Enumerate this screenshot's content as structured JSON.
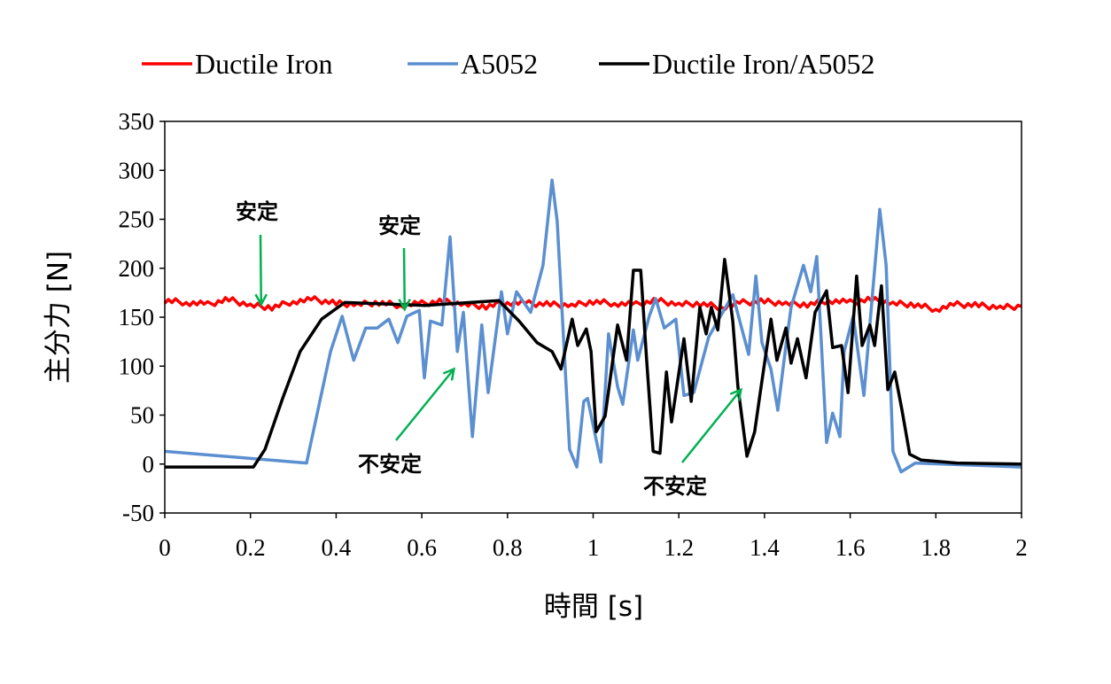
{
  "chart_data": {
    "type": "line",
    "xlabel": "時間 [s]",
    "ylabel": "主分力 [N]",
    "xlim": [
      0,
      2
    ],
    "ylim": [
      -50,
      350
    ],
    "xticks": [
      "0",
      "0.2",
      "0.4",
      "0.6",
      "0.8",
      "1",
      "1.2",
      "1.4",
      "1.6",
      "1.8",
      "2"
    ],
    "yticks": [
      "-50",
      "0",
      "50",
      "100",
      "150",
      "200",
      "250",
      "300",
      "350"
    ],
    "grid": false,
    "legend_position": "top",
    "series": [
      {
        "name": "Ductile Iron",
        "color": "#ff0000",
        "x": [
          0,
          0.05,
          0.1,
          0.15,
          0.2,
          0.25,
          0.3,
          0.35,
          0.4,
          0.45,
          0.5,
          0.55,
          0.6,
          0.65,
          0.7,
          0.75,
          0.8,
          0.85,
          0.9,
          0.95,
          1.0,
          1.05,
          1.1,
          1.15,
          1.2,
          1.25,
          1.3,
          1.35,
          1.4,
          1.45,
          1.5,
          1.55,
          1.6,
          1.65,
          1.7,
          1.75,
          1.8,
          1.85,
          1.9,
          1.95,
          2.0
        ],
        "y": [
          167,
          165,
          163,
          168,
          162,
          160,
          166,
          168,
          164,
          163,
          165,
          162,
          164,
          166,
          163,
          161,
          165,
          164,
          163,
          162,
          166,
          164,
          163,
          167,
          163,
          164,
          160,
          165,
          166,
          164,
          163,
          167,
          165,
          168,
          164,
          163,
          158,
          163,
          162,
          160,
          161
        ]
      },
      {
        "name": "A5052",
        "color": "#5b8fd0",
        "x": [
          0,
          0.331,
          0.387,
          0.414,
          0.441,
          0.469,
          0.496,
          0.523,
          0.544,
          0.565,
          0.594,
          0.606,
          0.62,
          0.647,
          0.666,
          0.683,
          0.697,
          0.718,
          0.74,
          0.755,
          0.786,
          0.8,
          0.821,
          0.854,
          0.883,
          0.904,
          0.916,
          0.945,
          0.962,
          0.978,
          0.987,
          1.018,
          1.036,
          1.057,
          1.069,
          1.094,
          1.104,
          1.131,
          1.146,
          1.166,
          1.193,
          1.212,
          1.235,
          1.27,
          1.326,
          1.363,
          1.38,
          1.394,
          1.415,
          1.431,
          1.45,
          1.462,
          1.491,
          1.508,
          1.522,
          1.545,
          1.559,
          1.576,
          1.586,
          1.607,
          1.632,
          1.646,
          1.669,
          1.684,
          1.7,
          1.719,
          1.752,
          2.0
        ],
        "y": [
          13,
          1,
          115,
          151,
          106,
          139,
          139,
          148,
          124,
          151,
          157,
          88,
          146,
          142,
          232,
          115,
          155,
          28,
          142,
          73,
          176,
          133,
          176,
          155,
          203,
          290,
          248,
          15,
          -3,
          64,
          67,
          2,
          133,
          79,
          61,
          137,
          106,
          151,
          169,
          139,
          148,
          70,
          73,
          130,
          173,
          112,
          192,
          124,
          97,
          55,
          121,
          160,
          203,
          176,
          212,
          22,
          52,
          28,
          115,
          151,
          70,
          142,
          260,
          203,
          13,
          -8,
          1,
          -3
        ]
      },
      {
        "name": "Ductile Iron/A5052",
        "color": "#000000",
        "x": [
          0,
          0.207,
          0.234,
          0.275,
          0.316,
          0.366,
          0.42,
          0.608,
          0.78,
          0.827,
          0.869,
          0.904,
          0.925,
          0.951,
          0.964,
          0.984,
          0.995,
          1.007,
          1.028,
          1.057,
          1.078,
          1.094,
          1.111,
          1.125,
          1.14,
          1.156,
          1.171,
          1.183,
          1.212,
          1.229,
          1.249,
          1.264,
          1.276,
          1.291,
          1.307,
          1.326,
          1.338,
          1.359,
          1.377,
          1.39,
          1.415,
          1.429,
          1.45,
          1.462,
          1.477,
          1.497,
          1.518,
          1.545,
          1.559,
          1.58,
          1.595,
          1.615,
          1.628,
          1.646,
          1.657,
          1.673,
          1.688,
          1.704,
          1.721,
          1.739,
          1.766,
          1.849,
          2.0
        ],
        "y": [
          -3,
          -3,
          15,
          67,
          115,
          148,
          165,
          162,
          167,
          146,
          124,
          115,
          97,
          148,
          121,
          138,
          115,
          33,
          49,
          142,
          106,
          198,
          198,
          106,
          13,
          11,
          94,
          43,
          128,
          64,
          160,
          133,
          160,
          137,
          209,
          146,
          79,
          8,
          33,
          73,
          148,
          106,
          139,
          103,
          128,
          88,
          155,
          177,
          119,
          121,
          73,
          192,
          121,
          142,
          121,
          182,
          76,
          94,
          55,
          10,
          4,
          1,
          0
        ]
      }
    ],
    "annotations": [
      {
        "text": "安定",
        "target": "Ductile Iron",
        "arrow_to": [
          0.225,
          163
        ],
        "color": "#00b050"
      },
      {
        "text": "安定",
        "target": "Ductile Iron/A5052",
        "arrow_to": [
          0.56,
          158
        ],
        "color": "#00b050"
      },
      {
        "text": "不安定",
        "target": "A5052",
        "arrow_to": [
          0.675,
          97
        ],
        "color": "#00b050"
      },
      {
        "text": "不安定",
        "target": "Ductile Iron/A5052",
        "arrow_to": [
          1.345,
          76
        ],
        "color": "#00b050"
      }
    ]
  }
}
